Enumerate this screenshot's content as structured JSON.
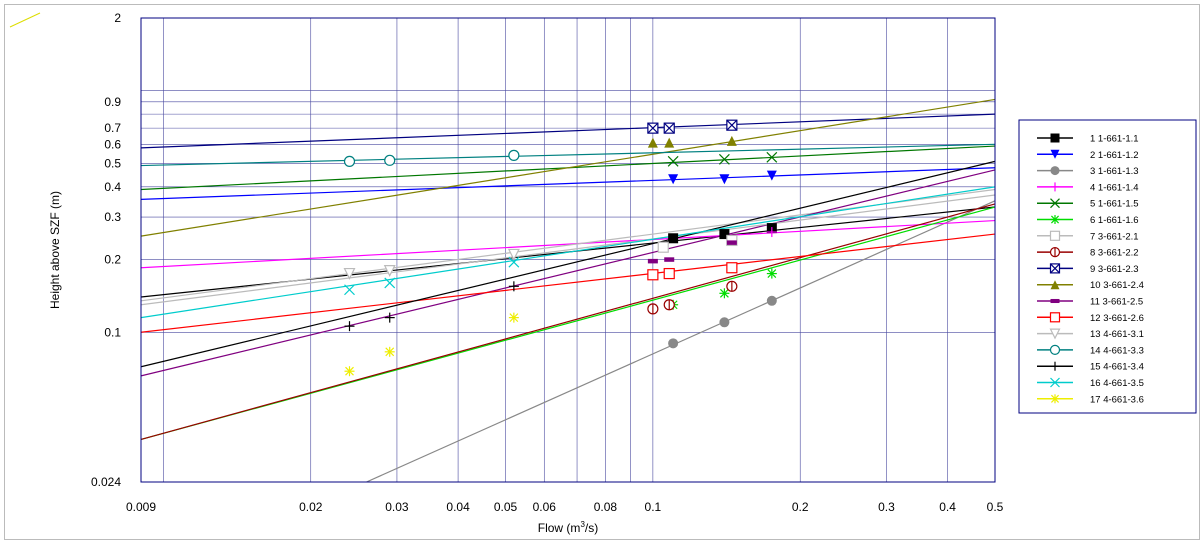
{
  "chart_data": {
    "type": "scatter",
    "title": "",
    "xlabel": "Flow (m",
    "xlabel_sup": "3",
    "xlabel_tail": "/s)",
    "ylabel": "Height above SZF (m)",
    "x_scale": "log",
    "y_scale": "log",
    "xlim": [
      0.009,
      0.5
    ],
    "ylim": [
      0.024,
      2
    ],
    "grid": true,
    "legend_position": "right",
    "x_ticks": [
      {
        "value": 0.009,
        "label": "0.009"
      },
      {
        "value": 0.02,
        "label": "0.02"
      },
      {
        "value": 0.03,
        "label": "0.03"
      },
      {
        "value": 0.04,
        "label": "0.04"
      },
      {
        "value": 0.05,
        "label": "0.05"
      },
      {
        "value": 0.06,
        "label": "0.06"
      },
      {
        "value": 0.08,
        "label": "0.08"
      },
      {
        "value": 0.1,
        "label": "0.1"
      },
      {
        "value": 0.2,
        "label": "0.2"
      },
      {
        "value": 0.3,
        "label": "0.3"
      },
      {
        "value": 0.4,
        "label": "0.4"
      },
      {
        "value": 0.5,
        "label": "0.5"
      }
    ],
    "y_ticks": [
      {
        "value": 0.024,
        "label": "0.024"
      },
      {
        "value": 0.1,
        "label": "0.1"
      },
      {
        "value": 0.2,
        "label": "0.2"
      },
      {
        "value": 0.3,
        "label": "0.3"
      },
      {
        "value": 0.4,
        "label": "0.4"
      },
      {
        "value": 0.5,
        "label": "0.5"
      },
      {
        "value": 0.6,
        "label": "0.6"
      },
      {
        "value": 0.7,
        "label": "0.7"
      },
      {
        "value": 0.9,
        "label": "0.9"
      },
      {
        "value": 2,
        "label": "2"
      }
    ],
    "x_grid": [
      0.01,
      0.02,
      0.03,
      0.04,
      0.05,
      0.06,
      0.07,
      0.08,
      0.09,
      0.1,
      0.2,
      0.3,
      0.4,
      0.5
    ],
    "y_grid": [
      0.1,
      0.2,
      0.3,
      0.4,
      0.5,
      0.6,
      0.7,
      0.8,
      0.9,
      1.0
    ],
    "series": [
      {
        "name": "1 1-661-1.1",
        "color": "#000000",
        "marker": "square-filled",
        "points": [
          [
            0.11,
            0.245
          ],
          [
            0.14,
            0.255
          ],
          [
            0.175,
            0.27
          ]
        ],
        "fit": [
          [
            0.009,
            0.14
          ],
          [
            0.5,
            0.33
          ]
        ]
      },
      {
        "name": "2 1-661-1.2",
        "color": "#0000ff",
        "marker": "triangle-down-filled",
        "points": [
          [
            0.11,
            0.43
          ],
          [
            0.14,
            0.43
          ],
          [
            0.175,
            0.445
          ]
        ],
        "fit": [
          [
            0.009,
            0.355
          ],
          [
            0.5,
            0.48
          ]
        ]
      },
      {
        "name": "3 1-661-1.3",
        "color": "#888888",
        "marker": "circle-filled",
        "points": [
          [
            0.11,
            0.09
          ],
          [
            0.14,
            0.11
          ],
          [
            0.175,
            0.135
          ]
        ],
        "fit": [
          [
            0.026,
            0.024
          ],
          [
            0.5,
            0.35
          ]
        ]
      },
      {
        "name": "4 1-661-1.4",
        "color": "#ff00ff",
        "marker": "plus",
        "points": [
          [
            0.175,
            0.26
          ]
        ],
        "fit": [
          [
            0.009,
            0.185
          ],
          [
            0.5,
            0.29
          ]
        ]
      },
      {
        "name": "5 1-661-1.5",
        "color": "#007700",
        "marker": "x",
        "points": [
          [
            0.11,
            0.51
          ],
          [
            0.14,
            0.52
          ],
          [
            0.175,
            0.53
          ]
        ],
        "fit": [
          [
            0.009,
            0.39
          ],
          [
            0.5,
            0.59
          ]
        ]
      },
      {
        "name": "6 1-661-1.6",
        "color": "#00dd00",
        "marker": "asterisk",
        "points": [
          [
            0.11,
            0.13
          ],
          [
            0.14,
            0.145
          ],
          [
            0.175,
            0.175
          ]
        ],
        "fit": [
          [
            0.009,
            0.036
          ],
          [
            0.5,
            0.33
          ]
        ]
      },
      {
        "name": "7 3-661-2.1",
        "color": "#bbbbbb",
        "marker": "square-open",
        "points": [
          [
            0.105,
            0.225
          ],
          [
            0.145,
            0.24
          ]
        ],
        "fit": [
          [
            0.009,
            0.135
          ],
          [
            0.5,
            0.39
          ]
        ]
      },
      {
        "name": "8 3-661-2.2",
        "color": "#990000",
        "marker": "circle-bar",
        "points": [
          [
            0.1,
            0.125
          ],
          [
            0.108,
            0.13
          ],
          [
            0.145,
            0.155
          ]
        ],
        "fit": [
          [
            0.009,
            0.036
          ],
          [
            0.5,
            0.34
          ]
        ]
      },
      {
        "name": "9 3-661-2.3",
        "color": "#000080",
        "marker": "square-x",
        "points": [
          [
            0.1,
            0.7
          ],
          [
            0.108,
            0.7
          ],
          [
            0.145,
            0.72
          ]
        ],
        "fit": [
          [
            0.009,
            0.58
          ],
          [
            0.5,
            0.8
          ]
        ]
      },
      {
        "name": "10 3-661-2.4",
        "color": "#808000",
        "marker": "triangle-up-filled",
        "points": [
          [
            0.1,
            0.61
          ],
          [
            0.108,
            0.61
          ],
          [
            0.145,
            0.62
          ]
        ],
        "fit": [
          [
            0.009,
            0.25
          ],
          [
            0.5,
            0.92
          ]
        ]
      },
      {
        "name": "11 3-661-2.5",
        "color": "#800080",
        "marker": "bar",
        "points": [
          [
            0.1,
            0.197
          ],
          [
            0.108,
            0.2
          ],
          [
            0.145,
            0.235
          ]
        ],
        "fit": [
          [
            0.009,
            0.066
          ],
          [
            0.5,
            0.47
          ]
        ]
      },
      {
        "name": "12 3-661-2.6",
        "color": "#ff0000",
        "marker": "square-open",
        "points": [
          [
            0.1,
            0.173
          ],
          [
            0.108,
            0.175
          ],
          [
            0.145,
            0.185
          ]
        ],
        "fit": [
          [
            0.009,
            0.1
          ],
          [
            0.5,
            0.255
          ]
        ]
      },
      {
        "name": "13 4-661-3.1",
        "color": "#bbbbbb",
        "marker": "triangle-down-open",
        "points": [
          [
            0.024,
            0.175
          ],
          [
            0.029,
            0.18
          ],
          [
            0.052,
            0.21
          ]
        ],
        "fit": [
          [
            0.009,
            0.13
          ],
          [
            0.5,
            0.37
          ]
        ]
      },
      {
        "name": "14 4-661-3.3",
        "color": "#008080",
        "marker": "circle-open",
        "points": [
          [
            0.024,
            0.51
          ],
          [
            0.029,
            0.515
          ],
          [
            0.052,
            0.54
          ]
        ],
        "fit": [
          [
            0.009,
            0.49
          ],
          [
            0.5,
            0.6
          ]
        ]
      },
      {
        "name": "15 4-661-3.4",
        "color": "#000000",
        "marker": "plus",
        "points": [
          [
            0.024,
            0.106
          ],
          [
            0.029,
            0.115
          ],
          [
            0.052,
            0.155
          ]
        ],
        "fit": [
          [
            0.009,
            0.072
          ],
          [
            0.5,
            0.51
          ]
        ]
      },
      {
        "name": "16 4-661-3.5",
        "color": "#00cccc",
        "marker": "x",
        "points": [
          [
            0.024,
            0.15
          ],
          [
            0.029,
            0.16
          ],
          [
            0.052,
            0.195
          ]
        ],
        "fit": [
          [
            0.009,
            0.115
          ],
          [
            0.5,
            0.4
          ]
        ]
      },
      {
        "name": "17 4-661-3.6",
        "color": "#eeee00",
        "marker": "asterisk",
        "points": [
          [
            0.024,
            0.069
          ],
          [
            0.029,
            0.083
          ],
          [
            0.052,
            0.115
          ]
        ],
        "fit": []
      }
    ]
  }
}
